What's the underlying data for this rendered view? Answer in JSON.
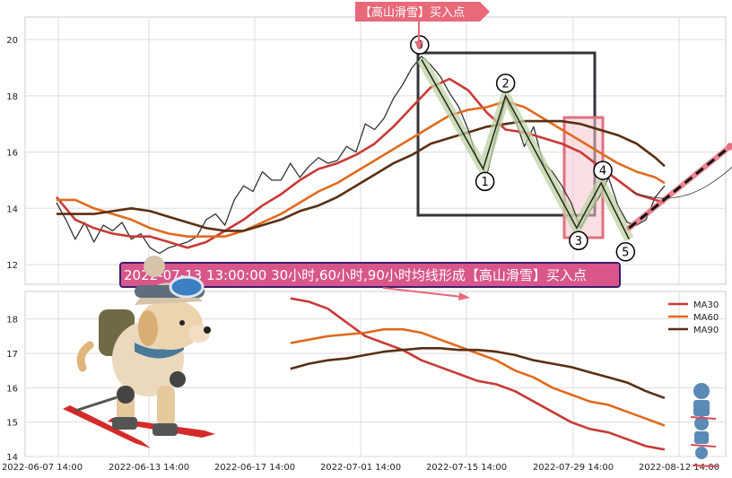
{
  "chart_data": {
    "type": "line",
    "top_panel": {
      "ylim": [
        11.3,
        20.8
      ],
      "yticks": [
        12,
        14,
        16,
        18,
        20
      ],
      "grid": true,
      "series": [
        {
          "color": "#333333",
          "points": [
            [
              0,
              14.2
            ],
            [
              1,
              13.6
            ],
            [
              2,
              12.9
            ],
            [
              3,
              13.5
            ],
            [
              4,
              12.8
            ],
            [
              5,
              13.4
            ],
            [
              6,
              13.2
            ],
            [
              7,
              13.5
            ],
            [
              8,
              12.9
            ],
            [
              9,
              13.1
            ],
            [
              10,
              12.6
            ],
            [
              11,
              12.4
            ],
            [
              12,
              12.6
            ],
            [
              13,
              12.7
            ],
            [
              14,
              12.8
            ],
            [
              15,
              13.0
            ],
            [
              16,
              13.6
            ],
            [
              17,
              13.8
            ],
            [
              18,
              13.4
            ],
            [
              19,
              14.3
            ],
            [
              20,
              14.8
            ],
            [
              21,
              14.6
            ],
            [
              22,
              15.3
            ],
            [
              23,
              15.0
            ],
            [
              24,
              15.0
            ],
            [
              25,
              15.6
            ],
            [
              26,
              15.1
            ],
            [
              27,
              15.5
            ],
            [
              28,
              15.8
            ],
            [
              29,
              15.6
            ],
            [
              30,
              15.7
            ],
            [
              31,
              16.2
            ],
            [
              32,
              16.0
            ],
            [
              33,
              17.0
            ],
            [
              34,
              16.8
            ],
            [
              35,
              17.2
            ],
            [
              36,
              17.9
            ],
            [
              37,
              18.4
            ],
            [
              38,
              19.0
            ],
            [
              39,
              19.4
            ],
            [
              40,
              19.1
            ],
            [
              41,
              18.7
            ],
            [
              42,
              18.1
            ],
            [
              43,
              17.6
            ],
            [
              44,
              16.8
            ],
            [
              45,
              15.7
            ],
            [
              46,
              15.2
            ],
            [
              47,
              16.6
            ],
            [
              48,
              17.9
            ],
            [
              49,
              17.2
            ],
            [
              50,
              16.2
            ],
            [
              51,
              16.9
            ],
            [
              52,
              15.6
            ],
            [
              53,
              15.3
            ],
            [
              54,
              14.8
            ],
            [
              55,
              14.2
            ],
            [
              56,
              13.3
            ],
            [
              57,
              13.9
            ],
            [
              58,
              14.4
            ],
            [
              59,
              15.1
            ],
            [
              60,
              14.1
            ],
            [
              61,
              13.5
            ],
            [
              62,
              13.4
            ],
            [
              63,
              13.6
            ],
            [
              64,
              14.4
            ],
            [
              65,
              14.8
            ]
          ]
        },
        {
          "name": "MA30",
          "color": "#c83a36",
          "points": [
            [
              0,
              14.4
            ],
            [
              2,
              13.6
            ],
            [
              4,
              13.3
            ],
            [
              6,
              13.1
            ],
            [
              8,
              13.0
            ],
            [
              10,
              13.0
            ],
            [
              12,
              12.8
            ],
            [
              14,
              12.6
            ],
            [
              16,
              12.8
            ],
            [
              18,
              13.2
            ],
            [
              20,
              13.6
            ],
            [
              22,
              14.1
            ],
            [
              24,
              14.5
            ],
            [
              26,
              15.0
            ],
            [
              28,
              15.4
            ],
            [
              30,
              15.6
            ],
            [
              32,
              15.9
            ],
            [
              34,
              16.3
            ],
            [
              36,
              16.9
            ],
            [
              38,
              17.6
            ],
            [
              40,
              18.3
            ],
            [
              42,
              18.6
            ],
            [
              44,
              18.2
            ],
            [
              46,
              17.4
            ],
            [
              48,
              16.8
            ],
            [
              50,
              16.7
            ],
            [
              52,
              16.5
            ],
            [
              54,
              16.3
            ],
            [
              56,
              16.0
            ],
            [
              58,
              15.5
            ],
            [
              60,
              15.0
            ],
            [
              62,
              14.5
            ],
            [
              64,
              14.3
            ],
            [
              65,
              14.2
            ]
          ]
        },
        {
          "name": "MA60",
          "color": "#e06a1e",
          "points": [
            [
              0,
              14.3
            ],
            [
              2,
              14.3
            ],
            [
              4,
              14.0
            ],
            [
              6,
              13.8
            ],
            [
              8,
              13.6
            ],
            [
              10,
              13.3
            ],
            [
              12,
              13.1
            ],
            [
              14,
              13.0
            ],
            [
              16,
              13.0
            ],
            [
              18,
              13.0
            ],
            [
              20,
              13.2
            ],
            [
              22,
              13.5
            ],
            [
              24,
              13.8
            ],
            [
              26,
              14.2
            ],
            [
              28,
              14.6
            ],
            [
              30,
              14.9
            ],
            [
              32,
              15.3
            ],
            [
              34,
              15.7
            ],
            [
              36,
              16.1
            ],
            [
              38,
              16.5
            ],
            [
              40,
              16.9
            ],
            [
              42,
              17.3
            ],
            [
              44,
              17.5
            ],
            [
              46,
              17.6
            ],
            [
              48,
              17.8
            ],
            [
              50,
              17.6
            ],
            [
              52,
              17.2
            ],
            [
              54,
              16.8
            ],
            [
              56,
              16.4
            ],
            [
              58,
              16.0
            ],
            [
              60,
              15.6
            ],
            [
              62,
              15.3
            ],
            [
              64,
              15.1
            ],
            [
              65,
              14.9
            ]
          ]
        },
        {
          "name": "MA90",
          "color": "#5a2e12",
          "points": [
            [
              0,
              13.8
            ],
            [
              2,
              13.8
            ],
            [
              4,
              13.8
            ],
            [
              6,
              13.9
            ],
            [
              8,
              14.0
            ],
            [
              10,
              13.9
            ],
            [
              12,
              13.7
            ],
            [
              14,
              13.5
            ],
            [
              16,
              13.3
            ],
            [
              18,
              13.2
            ],
            [
              20,
              13.2
            ],
            [
              22,
              13.4
            ],
            [
              24,
              13.6
            ],
            [
              26,
              13.9
            ],
            [
              28,
              14.1
            ],
            [
              30,
              14.4
            ],
            [
              32,
              14.8
            ],
            [
              34,
              15.2
            ],
            [
              36,
              15.6
            ],
            [
              38,
              15.9
            ],
            [
              40,
              16.3
            ],
            [
              42,
              16.5
            ],
            [
              44,
              16.7
            ],
            [
              46,
              16.9
            ],
            [
              48,
              17.0
            ],
            [
              50,
              17.1
            ],
            [
              52,
              17.1
            ],
            [
              54,
              17.1
            ],
            [
              56,
              17.0
            ],
            [
              58,
              16.8
            ],
            [
              60,
              16.6
            ],
            [
              62,
              16.3
            ],
            [
              64,
              15.8
            ],
            [
              65,
              15.5
            ]
          ]
        }
      ],
      "waves": [
        {
          "label": "0",
          "x": 39,
          "y": 19.3
        },
        {
          "label": "1",
          "x": 45.6,
          "y": 15.4
        },
        {
          "label": "2",
          "x": 48,
          "y": 18.0
        },
        {
          "label": "3",
          "x": 55.6,
          "y": 13.3
        },
        {
          "label": "4",
          "x": 58.2,
          "y": 14.9
        },
        {
          "label": "5",
          "x": 61.2,
          "y": 12.9
        }
      ],
      "projection": {
        "from": [
          61.2,
          13.3
        ],
        "to": [
          72,
          16.2
        ]
      }
    },
    "bottom_panel": {
      "ylim": [
        14,
        18.8
      ],
      "yticks": [
        14,
        15,
        16,
        17,
        18
      ],
      "grid": true,
      "series": [
        {
          "name": "MA30",
          "color": "#c83a36",
          "points": [
            [
              25,
              18.6
            ],
            [
              27,
              18.5
            ],
            [
              29,
              18.3
            ],
            [
              31,
              17.9
            ],
            [
              33,
              17.5
            ],
            [
              35,
              17.3
            ],
            [
              37,
              17.1
            ],
            [
              39,
              16.8
            ],
            [
              41,
              16.6
            ],
            [
              43,
              16.4
            ],
            [
              45,
              16.2
            ],
            [
              47,
              16.1
            ],
            [
              49,
              15.9
            ],
            [
              51,
              15.6
            ],
            [
              53,
              15.3
            ],
            [
              55,
              15.0
            ],
            [
              57,
              14.8
            ],
            [
              59,
              14.7
            ],
            [
              61,
              14.5
            ],
            [
              63,
              14.3
            ],
            [
              65,
              14.2
            ]
          ]
        },
        {
          "name": "MA60",
          "color": "#e06a1e",
          "points": [
            [
              25,
              17.3
            ],
            [
              27,
              17.4
            ],
            [
              29,
              17.5
            ],
            [
              31,
              17.55
            ],
            [
              33,
              17.6
            ],
            [
              35,
              17.7
            ],
            [
              37,
              17.7
            ],
            [
              39,
              17.6
            ],
            [
              41,
              17.4
            ],
            [
              43,
              17.2
            ],
            [
              45,
              17.0
            ],
            [
              47,
              16.8
            ],
            [
              49,
              16.5
            ],
            [
              51,
              16.3
            ],
            [
              53,
              16.0
            ],
            [
              55,
              15.8
            ],
            [
              57,
              15.6
            ],
            [
              59,
              15.5
            ],
            [
              61,
              15.3
            ],
            [
              63,
              15.1
            ],
            [
              65,
              14.9
            ]
          ]
        },
        {
          "name": "MA90",
          "color": "#5a2e12",
          "points": [
            [
              25,
              16.55
            ],
            [
              27,
              16.7
            ],
            [
              29,
              16.8
            ],
            [
              31,
              16.85
            ],
            [
              33,
              16.95
            ],
            [
              35,
              17.05
            ],
            [
              37,
              17.1
            ],
            [
              39,
              17.15
            ],
            [
              41,
              17.15
            ],
            [
              43,
              17.1
            ],
            [
              45,
              17.1
            ],
            [
              47,
              17.05
            ],
            [
              49,
              16.95
            ],
            [
              51,
              16.8
            ],
            [
              53,
              16.7
            ],
            [
              55,
              16.6
            ],
            [
              57,
              16.45
            ],
            [
              59,
              16.3
            ],
            [
              61,
              16.15
            ],
            [
              63,
              15.9
            ],
            [
              65,
              15.7
            ]
          ]
        }
      ]
    },
    "x_tick_labels": [
      "2022-06-07 14:00",
      "2022-06-13 14:00",
      "2022-06-17 14:00",
      "2022-07-01 14:00",
      "2022-07-15 14:00",
      "2022-07-29 14:00",
      "2022-08-12 14:00"
    ],
    "legend": {
      "placement": "top-right",
      "entries": [
        "MA30",
        "MA60",
        "MA90"
      ]
    },
    "annotations": {
      "buy_point_tag": "【高山滑雪】买入点",
      "signal_banner": "2022-07-13 13:00:00 30小时,60小时,90小时均线形成【高山滑雪】买入点"
    }
  }
}
